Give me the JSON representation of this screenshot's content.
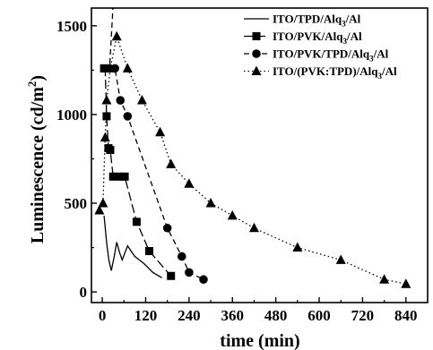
{
  "chart_data": {
    "type": "line",
    "title": "",
    "xlabel": "time (min)",
    "ylabel": "Luminescence (cd/m²)",
    "ylabel_parts": {
      "main": "Luminescence (cd/m",
      "sup": "2",
      "close": ")"
    },
    "xlim": [
      -30,
      900
    ],
    "ylim": [
      -60,
      1600
    ],
    "x_ticks": [
      0,
      120,
      240,
      360,
      480,
      600,
      720,
      840
    ],
    "y_ticks": [
      0,
      500,
      1000,
      1500
    ],
    "grid": false,
    "legend_position": "top-right",
    "series": [
      {
        "name": "ITO/TPD/Alq3/Al",
        "name_parts": [
          "ITO/TPD/Alq",
          "3",
          "/Al"
        ],
        "marker": "none",
        "dash": "solid",
        "x": [
          5,
          12,
          18,
          25,
          33,
          40,
          48,
          55,
          70,
          90,
          115,
          140,
          165
        ],
        "y": [
          430,
          280,
          180,
          120,
          200,
          280,
          220,
          180,
          260,
          200,
          160,
          110,
          80
        ]
      },
      {
        "name": "ITO/PVK/Alq3/Al",
        "name_parts": [
          "ITO/PVK/Alq",
          "3",
          "/Al"
        ],
        "marker": "square",
        "dash": "longdash",
        "x": [
          5,
          8,
          12,
          17,
          22,
          30,
          48,
          62,
          95,
          130,
          190
        ],
        "y": [
          1260,
          1260,
          990,
          810,
          800,
          650,
          650,
          650,
          395,
          230,
          90
        ]
      },
      {
        "name": "ITO/PVK/TPD/Alq3/Al",
        "name_parts": [
          "ITO/PVK/TPD/Alq",
          "3",
          "/Al"
        ],
        "marker": "circle",
        "dash": "dash",
        "x": [
          30,
          20,
          35,
          50,
          70,
          180,
          220,
          240,
          280
        ],
        "y": [
          1620,
          1260,
          1260,
          1080,
          990,
          360,
          200,
          110,
          70
        ]
      },
      {
        "name": "ITO/(PVK:TPD)/Alq3/Al",
        "name_parts": [
          "ITO/(PVK:TPD)/Alq",
          "3",
          "/Al"
        ],
        "marker": "triangle",
        "dash": "dot",
        "x": [
          -8,
          2,
          8,
          12,
          22,
          40,
          70,
          110,
          160,
          190,
          240,
          300,
          360,
          420,
          540,
          660,
          780,
          840
        ],
        "y": [
          460,
          500,
          870,
          1080,
          1260,
          1440,
          1260,
          1080,
          900,
          720,
          610,
          500,
          430,
          360,
          250,
          180,
          70,
          45
        ]
      }
    ]
  }
}
